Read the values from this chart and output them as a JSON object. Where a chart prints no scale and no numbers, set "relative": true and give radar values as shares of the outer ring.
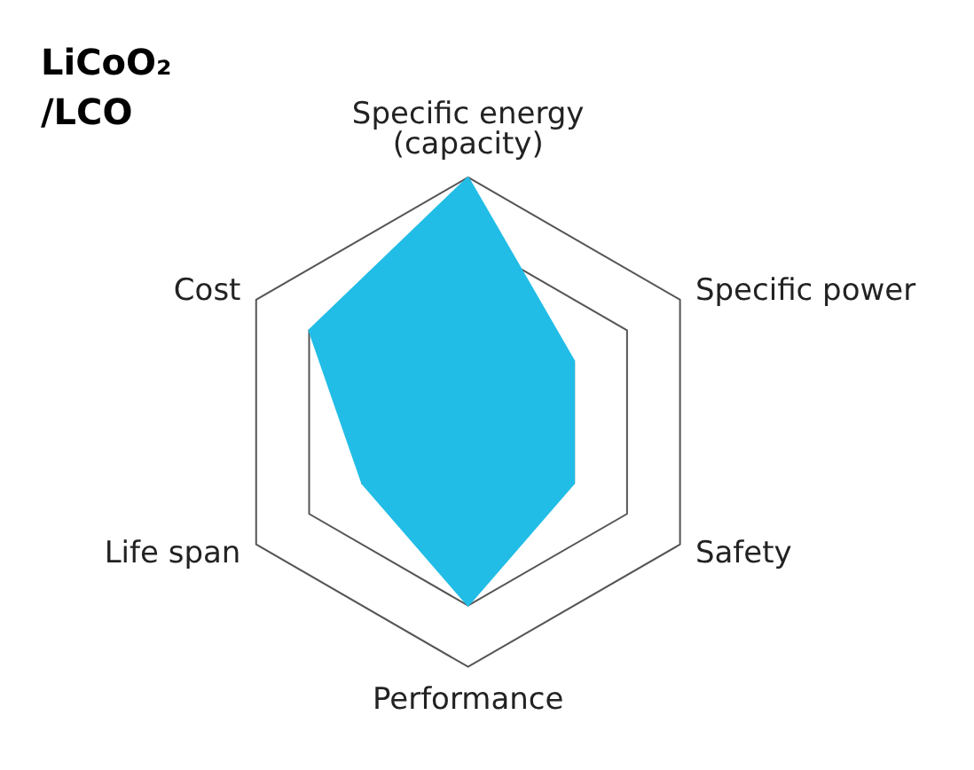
{
  "chart_data": {
    "type": "radar",
    "title": "LiCoO₂\n/LCO",
    "relative": true,
    "grid": true,
    "categories": [
      "Specific energy\n(capacity)",
      "Specific power",
      "Safety",
      "Performance",
      "Life span",
      "Cost"
    ],
    "series": [
      {
        "color": "#22bde6",
        "values": [
          1,
          0.5,
          0.5,
          0.75,
          0.5,
          0.75
        ]
      }
    ]
  }
}
